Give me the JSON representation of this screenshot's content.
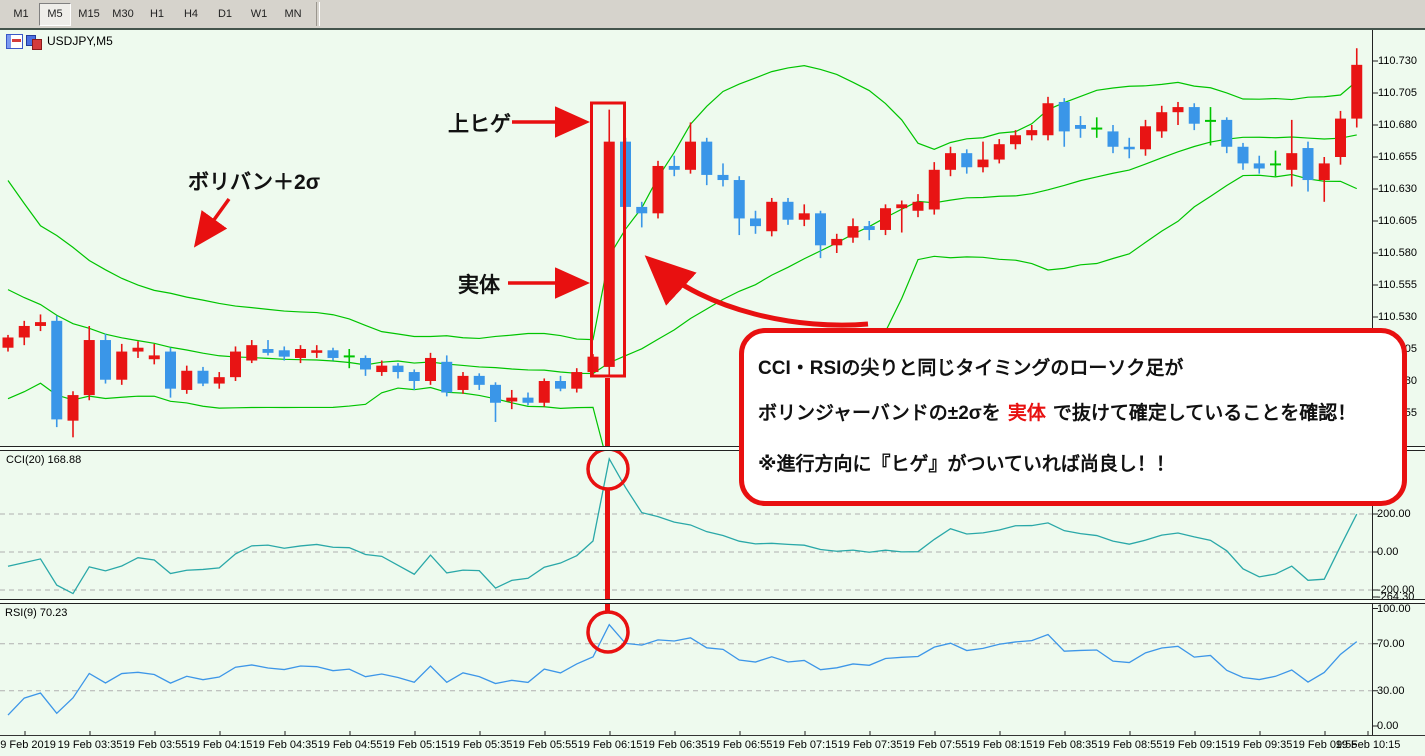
{
  "toolbar": {
    "timeframes": [
      "M1",
      "M5",
      "M15",
      "M30",
      "H1",
      "H4",
      "D1",
      "W1",
      "MN"
    ],
    "active_timeframe": "M5"
  },
  "window": {
    "symbol_title": "USDJPY,M5"
  },
  "annotations": {
    "upper_wick_label": "上ヒゲ",
    "bollinger_label": "ボリバン＋2σ",
    "body_label": "実体",
    "callout": {
      "line1": "CCI・RSIの尖りと同じタイミングのローソク足が",
      "line2_pre": "ボリンジャーバンドの±2σを",
      "line2_em": "実体",
      "line2_post": "で抜けて確定していることを確認！",
      "line3": "※進行方向に『ヒゲ』がついていれば尚良し！！"
    }
  },
  "indicators": {
    "cci": {
      "label": "CCI(20) 168.88",
      "axis_labels": [
        "200.00",
        "0.00",
        "-200.00",
        "-264.30"
      ]
    },
    "rsi": {
      "label": "RSI(9) 70.23",
      "axis_labels": [
        "100.00",
        "70.00",
        "30.00",
        "0.00"
      ]
    }
  },
  "chart_data": {
    "type": "candlestick",
    "symbol": "USDJPY",
    "timeframe": "M5",
    "title": "USDJPY,M5",
    "price_axis_labels": [
      "110.730",
      "110.705",
      "110.680",
      "110.655",
      "110.630",
      "110.605",
      "110.580",
      "110.555",
      "110.530",
      "110.505",
      "110.480",
      "110.455"
    ],
    "time_axis_labels": [
      "19 Feb 2019",
      "19 Feb 03:35",
      "19 Feb 03:55",
      "19 Feb 04:15",
      "19 Feb 04:35",
      "19 Feb 04:55",
      "19 Feb 05:15",
      "19 Feb 05:35",
      "19 Feb 05:55",
      "19 Feb 06:15",
      "19 Feb 06:35",
      "19 Feb 06:55",
      "19 Feb 07:15",
      "19 Feb 07:35",
      "19 Feb 07:55",
      "19 Feb 08:15",
      "19 Feb 08:35",
      "19 Feb 08:55",
      "19 Feb 09:15",
      "19 Feb 09:35",
      "19 Feb 09:55",
      "19 Feb 10:15"
    ],
    "bollinger": {
      "period": 20,
      "deviation": 2
    },
    "cci": {
      "period": 20,
      "value": 168.88,
      "grid_levels": [
        200,
        0,
        -200
      ],
      "min_label": -264.3
    },
    "rsi": {
      "period": 9,
      "value": 70.23,
      "grid_levels": [
        70,
        30
      ],
      "range": [
        0,
        100
      ]
    },
    "pre_history_closes": [
      110.66,
      110.648,
      110.634,
      110.618,
      110.6,
      110.585,
      110.572,
      110.56,
      110.55,
      110.542,
      110.536,
      110.531,
      110.527,
      110.524,
      110.521,
      110.518,
      110.515,
      110.513,
      110.511,
      110.509
    ],
    "green_doji_indices": [
      21,
      67,
      74,
      78
    ],
    "highlighted_candle_index": 37,
    "candles": [
      [
        110.506,
        110.516,
        110.503,
        110.514
      ],
      [
        110.514,
        110.527,
        110.508,
        110.523
      ],
      [
        110.523,
        110.532,
        110.519,
        110.526
      ],
      [
        110.527,
        110.531,
        110.444,
        110.45
      ],
      [
        110.449,
        110.472,
        110.436,
        110.469
      ],
      [
        110.469,
        110.523,
        110.465,
        110.512
      ],
      [
        110.512,
        110.517,
        110.478,
        110.481
      ],
      [
        110.481,
        110.509,
        110.477,
        110.503
      ],
      [
        110.503,
        110.511,
        110.498,
        110.506
      ],
      [
        110.497,
        110.509,
        110.493,
        110.5
      ],
      [
        110.503,
        110.506,
        110.467,
        110.474
      ],
      [
        110.473,
        110.492,
        110.47,
        110.488
      ],
      [
        110.488,
        110.491,
        110.476,
        110.478
      ],
      [
        110.478,
        110.487,
        110.474,
        110.483
      ],
      [
        110.483,
        110.507,
        110.48,
        110.503
      ],
      [
        110.496,
        110.512,
        110.494,
        110.508
      ],
      [
        110.505,
        110.512,
        110.5,
        110.502
      ],
      [
        110.504,
        110.507,
        110.496,
        110.499
      ],
      [
        110.498,
        110.508,
        110.494,
        110.505
      ],
      [
        110.502,
        110.508,
        110.498,
        110.504
      ],
      [
        110.504,
        110.506,
        110.496,
        110.498
      ],
      [
        110.5,
        110.505,
        110.49,
        110.5
      ],
      [
        110.498,
        110.5,
        110.484,
        110.489
      ],
      [
        110.487,
        110.496,
        110.484,
        110.492
      ],
      [
        110.492,
        110.494,
        110.482,
        110.487
      ],
      [
        110.487,
        110.489,
        110.473,
        110.48
      ],
      [
        110.48,
        110.502,
        110.477,
        110.498
      ],
      [
        110.495,
        110.5,
        110.468,
        110.471
      ],
      [
        110.473,
        110.487,
        110.47,
        110.484
      ],
      [
        110.484,
        110.486,
        110.473,
        110.477
      ],
      [
        110.477,
        110.479,
        110.448,
        110.463
      ],
      [
        110.464,
        110.473,
        110.458,
        110.467
      ],
      [
        110.467,
        110.471,
        110.461,
        110.463
      ],
      [
        110.463,
        110.482,
        110.46,
        110.48
      ],
      [
        110.48,
        110.484,
        110.472,
        110.474
      ],
      [
        110.474,
        110.49,
        110.471,
        110.487
      ],
      [
        110.487,
        110.501,
        110.484,
        110.499
      ],
      [
        110.491,
        110.692,
        110.485,
        110.667
      ],
      [
        110.667,
        110.67,
        110.601,
        110.616
      ],
      [
        110.616,
        110.62,
        110.6,
        110.611
      ],
      [
        110.611,
        110.652,
        110.607,
        110.648
      ],
      [
        110.648,
        110.656,
        110.64,
        110.645
      ],
      [
        110.645,
        110.682,
        110.642,
        110.667
      ],
      [
        110.667,
        110.67,
        110.633,
        110.641
      ],
      [
        110.641,
        110.65,
        110.632,
        110.637
      ],
      [
        110.637,
        110.64,
        110.594,
        110.607
      ],
      [
        110.607,
        110.613,
        110.595,
        110.601
      ],
      [
        110.597,
        110.623,
        110.593,
        110.62
      ],
      [
        110.62,
        110.623,
        110.602,
        110.606
      ],
      [
        110.606,
        110.618,
        110.601,
        110.611
      ],
      [
        110.611,
        110.613,
        110.576,
        110.586
      ],
      [
        110.586,
        110.595,
        110.58,
        110.591
      ],
      [
        110.592,
        110.607,
        110.588,
        110.601
      ],
      [
        110.601,
        110.605,
        110.59,
        110.598
      ],
      [
        110.598,
        110.618,
        110.594,
        110.615
      ],
      [
        110.615,
        110.621,
        110.596,
        110.618
      ],
      [
        110.613,
        110.626,
        110.608,
        110.62
      ],
      [
        110.614,
        110.651,
        110.61,
        110.645
      ],
      [
        110.645,
        110.663,
        110.64,
        110.658
      ],
      [
        110.658,
        110.661,
        110.642,
        110.647
      ],
      [
        110.647,
        110.667,
        110.643,
        110.653
      ],
      [
        110.653,
        110.669,
        110.65,
        110.665
      ],
      [
        110.665,
        110.676,
        110.661,
        110.672
      ],
      [
        110.672,
        110.68,
        110.668,
        110.676
      ],
      [
        110.672,
        110.702,
        110.668,
        110.697
      ],
      [
        110.698,
        110.701,
        110.663,
        110.675
      ],
      [
        110.68,
        110.687,
        110.67,
        110.677
      ],
      [
        110.678,
        110.686,
        110.67,
        110.678
      ],
      [
        110.675,
        110.68,
        110.658,
        110.663
      ],
      [
        110.663,
        110.67,
        110.654,
        110.661
      ],
      [
        110.661,
        110.684,
        110.656,
        110.679
      ],
      [
        110.675,
        110.695,
        110.67,
        110.69
      ],
      [
        110.69,
        110.698,
        110.68,
        110.694
      ],
      [
        110.694,
        110.697,
        110.676,
        110.681
      ],
      [
        110.684,
        110.694,
        110.664,
        110.684
      ],
      [
        110.684,
        110.686,
        110.658,
        110.663
      ],
      [
        110.663,
        110.666,
        110.645,
        110.65
      ],
      [
        110.65,
        110.656,
        110.642,
        110.646
      ],
      [
        110.65,
        110.66,
        110.64,
        110.65
      ],
      [
        110.645,
        110.684,
        110.632,
        110.658
      ],
      [
        110.662,
        110.667,
        110.628,
        110.637
      ],
      [
        110.637,
        110.655,
        110.62,
        110.65
      ],
      [
        110.655,
        110.691,
        110.649,
        110.685
      ],
      [
        110.685,
        110.74,
        110.678,
        110.727
      ]
    ],
    "colors": {
      "background": "#eefaee",
      "candle_up": "#e81414",
      "candle_down": "#3a96e8",
      "doji_green": "#00c400",
      "bollinger_band": "#00c400",
      "cci_line": "#2aa8a8",
      "rsi_line": "#3d96e8",
      "annotation_red": "#e81010"
    }
  }
}
